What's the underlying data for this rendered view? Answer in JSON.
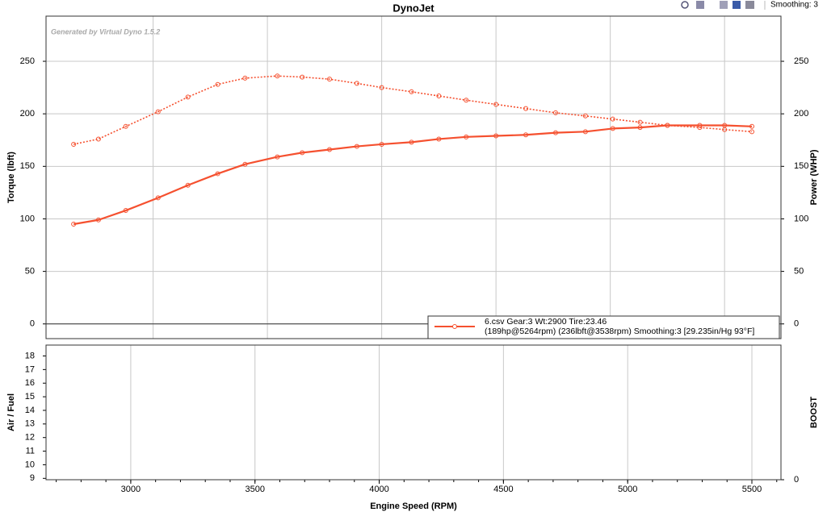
{
  "toolbar": {
    "smoothing": "Smoothing: 3"
  },
  "chart_data": [
    {
      "type": "line",
      "title": "DynoJet",
      "annotation": "Generated by Virtual Dyno 1.5.2",
      "ylabel": "Torque (lbft)",
      "y2label": "Power (WHP)",
      "xlim": [
        2659,
        5617
      ],
      "xgrid": [
        3090,
        3550,
        4010,
        4470,
        4930,
        5390
      ],
      "ylim": [
        -14,
        293
      ],
      "yticks": [
        0,
        50,
        100,
        150,
        200,
        250
      ],
      "y2lim": [
        -14,
        293
      ],
      "y2ticks": [
        0,
        50,
        100,
        150,
        200,
        250
      ],
      "grid": true,
      "x": [
        2770,
        2870,
        2980,
        3110,
        3230,
        3350,
        3460,
        3590,
        3690,
        3800,
        3910,
        4010,
        4130,
        4240,
        4350,
        4470,
        4590,
        4710,
        4830,
        4940,
        5050,
        5160,
        5290,
        5390,
        5500
      ],
      "series": [
        {
          "color": "#f5502f",
          "style": "dotted",
          "values": [
            171,
            176,
            188,
            202,
            216,
            228,
            234,
            236,
            235,
            233,
            229,
            225,
            221,
            217,
            213,
            209,
            205,
            201,
            198,
            195,
            192,
            189,
            187,
            185,
            183
          ]
        },
        {
          "color": "#f5502f",
          "style": "solid",
          "axis": "y2",
          "values": [
            95,
            99,
            108,
            120,
            132,
            143,
            152,
            159,
            163,
            166,
            169,
            171,
            173,
            176,
            178,
            179,
            180,
            182,
            183,
            186,
            187,
            189,
            189,
            189,
            188
          ]
        }
      ],
      "legend": {
        "line1": "6.csv Gear:3 Wt:2900 Tire:23.46",
        "line2": "(189hp@5264rpm)  (236lbft@3538rpm)  Smoothing:3  [29.235in/Hg  93°F]"
      }
    },
    {
      "type": "line",
      "xlabel": "Engine Speed (RPM)",
      "ylabel": "Air / Fuel",
      "y2label": "BOOST",
      "xlim": [
        2659,
        5617
      ],
      "xticks": [
        3000,
        3500,
        4000,
        4500,
        5000,
        5500
      ],
      "ylim": [
        8.9,
        18.8
      ],
      "yticks": [
        9,
        10,
        11,
        12,
        13,
        14,
        15,
        16,
        17,
        18
      ],
      "y2lim": [
        0,
        1
      ],
      "y2ticks": [
        0
      ],
      "grid": true,
      "series": []
    }
  ]
}
